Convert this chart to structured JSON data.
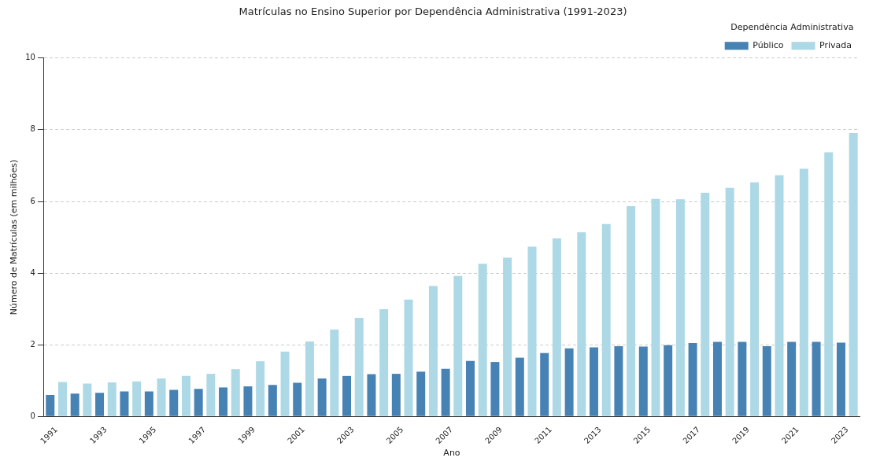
{
  "chart_data": {
    "type": "bar",
    "title": "Matrículas no Ensino Superior por Dependência Administrativa (1991-2023)",
    "xlabel": "Ano",
    "ylabel": "Número de Matrículas (em milhões)",
    "legend_title": "Dependência Administrativa",
    "categories": [
      "1991",
      null,
      "1993",
      null,
      "1995",
      null,
      "1997",
      null,
      "1999",
      null,
      "2001",
      null,
      "2003",
      null,
      "2005",
      null,
      "2007",
      null,
      "2009",
      null,
      "2011",
      null,
      "2013",
      null,
      "2015",
      null,
      "2017",
      null,
      "2019",
      null,
      "2021",
      null,
      "2023"
    ],
    "series": [
      {
        "name": "Público",
        "color": "#4682b4",
        "values": [
          0.6,
          0.64,
          0.66,
          0.7,
          0.7,
          0.74,
          0.77,
          0.81,
          0.84,
          0.88,
          0.94,
          1.06,
          1.13,
          1.18,
          1.19,
          1.25,
          1.33,
          1.55,
          1.52,
          1.64,
          1.77,
          1.9,
          1.93,
          1.96,
          1.95,
          1.99,
          2.05,
          2.08,
          2.08,
          1.96,
          2.08,
          2.08,
          2.06
        ]
      },
      {
        "name": "Privada",
        "color": "#add8e6",
        "values": [
          0.96,
          0.92,
          0.95,
          0.98,
          1.06,
          1.13,
          1.19,
          1.32,
          1.54,
          1.81,
          2.09,
          2.43,
          2.75,
          2.99,
          3.26,
          3.64,
          3.92,
          4.26,
          4.43,
          4.74,
          4.97,
          5.14,
          5.37,
          5.87,
          6.07,
          6.06,
          6.24,
          6.38,
          6.53,
          6.73,
          6.91,
          7.37,
          7.91
        ]
      }
    ],
    "ylim": [
      0,
      10
    ],
    "yticks": [
      0,
      2,
      4,
      6,
      8,
      10
    ],
    "grid": "y",
    "legend": "top right"
  }
}
